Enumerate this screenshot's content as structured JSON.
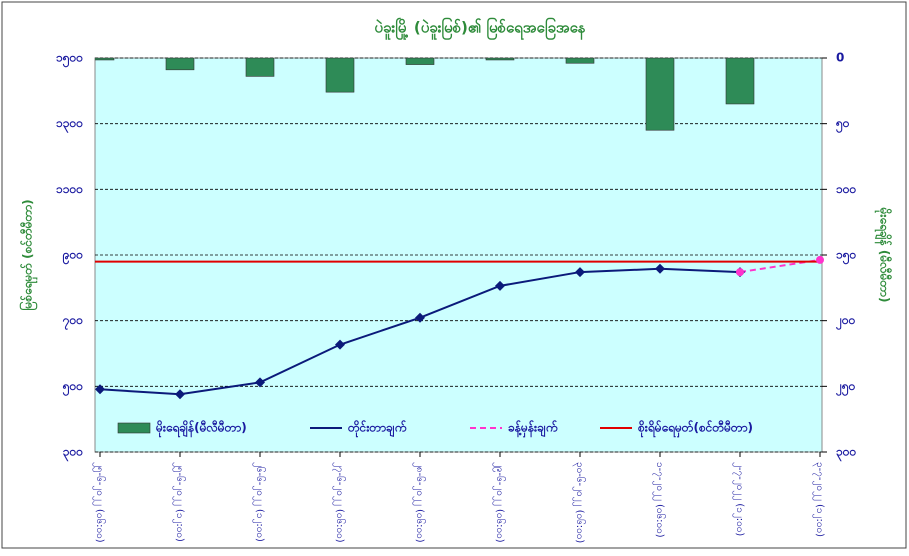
{
  "chart_data": {
    "type": "combo",
    "title": "ပဲခူးမြို့ (ပဲခူးမြစ်)၏ မြစ်ရေအခြေအနေ",
    "y_label": "မြစ်ရေမှတ် (စင်တီမီတာ)",
    "y2_label": "မိုးရေချိန် (မီလီမီတာ)",
    "categories": [
      "၂၅-၆-၂၀၂၂ (၀၆:၀၀)",
      "၂၅-၆-၂၀၂၂ (၁၂:၀၀)",
      "၂၆-၆-၂၀၂၂ (၁၂:၀၀)",
      "၂၇-၆-၂၀၂၂ (၀၆:၀၀)",
      "၂၈-၆-၂၀၂၂ (၀၆:၀၀)",
      "၂၉-၆-၂၀၂၂ (၀၆:၀၀)",
      "၃၀-၆-၂၀၂၂ (၀၆:၀၀)",
      "၁-၇-၂၀၂၂ (၀၆:၀၀)",
      "၂-၇-၂၀၂၂ (၁၂:၀၀)",
      "၃-၇-၂၀၂၂ (၁၂:၀၀)"
    ],
    "series": [
      {
        "name": "မိုးရေချိန်(မီလီမီတာ)",
        "type": "bar",
        "axis": "y2",
        "color": "#2e8b57",
        "values": [
          1.5,
          9,
          14,
          26,
          5,
          1.5,
          4,
          55,
          35,
          0
        ]
      },
      {
        "name": "တိုင်းတာချက်",
        "type": "line",
        "color": "#0b1a7a",
        "marker": "diamond",
        "values": [
          491,
          476,
          512,
          627,
          709,
          806,
          848,
          858,
          848,
          null
        ]
      },
      {
        "name": "ခန့်မှန်းချက်",
        "type": "line",
        "color": "#ff33cc",
        "marker": "circle",
        "dashed": true,
        "values": [
          null,
          null,
          null,
          null,
          null,
          null,
          null,
          null,
          848,
          885
        ]
      }
    ],
    "danger": {
      "name": "စိုးရိမ်ရေမှတ်(စင်တီမီတာ)",
      "color": "#e00000",
      "value": 880
    },
    "ylim": [
      300,
      1500
    ],
    "yticks": [
      {
        "value": 300,
        "label": "၃၀၀"
      },
      {
        "value": 500,
        "label": "၅၀၀"
      },
      {
        "value": 700,
        "label": "၇၀၀"
      },
      {
        "value": 900,
        "label": "၉၀၀"
      },
      {
        "value": 1100,
        "label": "၁၁၀၀"
      },
      {
        "value": 1300,
        "label": "၁၃၀၀"
      },
      {
        "value": 1500,
        "label": "၁၅၀၀"
      }
    ],
    "y2lim": [
      300,
      0
    ],
    "y2ticks": [
      {
        "value": 300,
        "label": "၃၀၀"
      },
      {
        "value": 250,
        "label": "၂၅၀"
      },
      {
        "value": 200,
        "label": "၂၀၀"
      },
      {
        "value": 150,
        "label": "၁၅၀"
      },
      {
        "value": 100,
        "label": "၁၀၀"
      },
      {
        "value": 50,
        "label": "၅၀"
      },
      0
    ],
    "grid": true
  }
}
